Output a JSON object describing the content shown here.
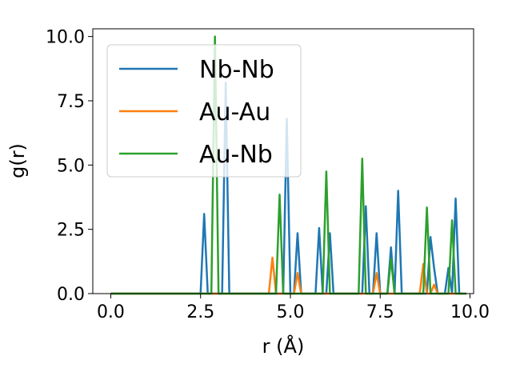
{
  "chart_data": {
    "type": "line",
    "xlabel": "r (Å)",
    "ylabel": "g(r)",
    "xlim": [
      -0.5,
      10.1
    ],
    "ylim": [
      0.0,
      10.3
    ],
    "xticks": [
      "0.0",
      "2.5",
      "5.0",
      "7.5",
      "10.0"
    ],
    "yticks": [
      "0.0",
      "2.5",
      "5.0",
      "7.5",
      "10.0"
    ],
    "grid": false,
    "legend_position": "top-left",
    "series": [
      {
        "name": "Nb-Nb",
        "color": "#1f77b4",
        "x": [
          0.0,
          2.5,
          2.6,
          2.7,
          3.1,
          3.2,
          3.3,
          4.8,
          4.9,
          5.0,
          5.1,
          5.2,
          5.3,
          5.7,
          5.8,
          5.9,
          6.0,
          6.1,
          6.2,
          7.0,
          7.1,
          7.2,
          7.3,
          7.4,
          7.5,
          7.7,
          7.8,
          7.9,
          8.0,
          8.1,
          8.8,
          8.9,
          9.0,
          9.1,
          9.3,
          9.4,
          9.5,
          9.6,
          9.7,
          9.8
        ],
        "y": [
          0.0,
          0.0,
          3.1,
          0.0,
          0.0,
          8.2,
          0.0,
          0.0,
          6.8,
          0.0,
          0.0,
          2.35,
          0.0,
          0.0,
          2.55,
          0.0,
          0.0,
          2.35,
          0.0,
          0.0,
          3.4,
          0.0,
          0.0,
          2.35,
          0.0,
          0.0,
          1.8,
          0.0,
          4.0,
          0.0,
          0.0,
          2.2,
          1.0,
          0.0,
          0.0,
          1.0,
          0.0,
          3.7,
          0.0,
          0.0
        ]
      },
      {
        "name": "Au-Au",
        "color": "#ff7f0e",
        "x": [
          0.0,
          4.4,
          4.5,
          4.6,
          5.1,
          5.2,
          5.3,
          7.3,
          7.4,
          7.5,
          8.6,
          8.7,
          8.8,
          8.9,
          9.0,
          9.1,
          9.9
        ],
        "y": [
          0.0,
          0.0,
          1.4,
          0.0,
          0.0,
          0.8,
          0.0,
          0.0,
          0.8,
          0.0,
          0.0,
          1.15,
          0.0,
          0.0,
          0.35,
          0.0,
          0.0
        ]
      },
      {
        "name": "Au-Nb",
        "color": "#2ca02c",
        "x": [
          0.0,
          2.8,
          2.9,
          3.0,
          4.6,
          4.7,
          4.8,
          5.9,
          6.0,
          6.1,
          6.9,
          7.0,
          7.1,
          7.7,
          7.8,
          7.9,
          8.7,
          8.8,
          8.9,
          9.4,
          9.5,
          9.6,
          9.9
        ],
        "y": [
          0.0,
          0.0,
          10.0,
          0.0,
          0.0,
          3.85,
          0.0,
          0.0,
          4.75,
          0.0,
          0.0,
          5.25,
          0.0,
          0.0,
          1.35,
          0.0,
          0.0,
          3.35,
          0.0,
          0.0,
          2.85,
          0.0,
          0.0
        ]
      }
    ]
  }
}
